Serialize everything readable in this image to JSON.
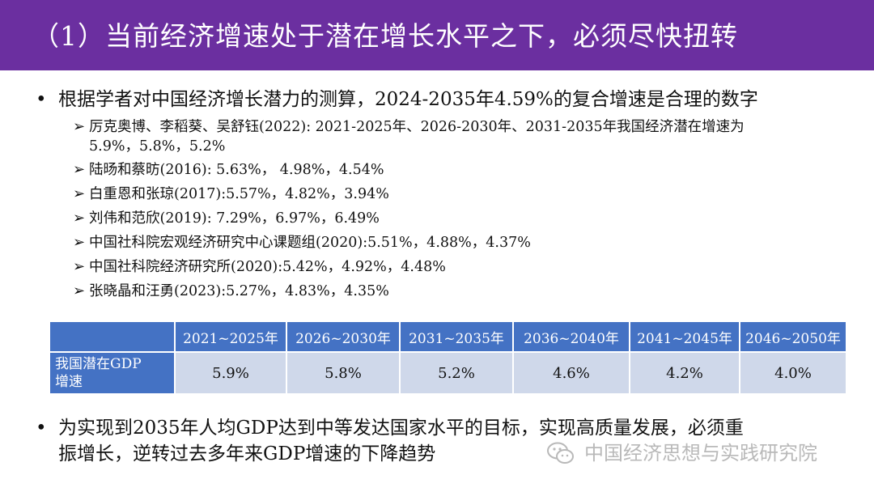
{
  "header": {
    "title": "（1）当前经济增速处于潜在增长水平之下，必须尽快扭转",
    "bg_color": "#6b2fa0"
  },
  "bullet1": {
    "text": "根据学者对中国经济增长潜力的测算，2024-2035年4.59%的复合增速是合理的数字",
    "items": [
      {
        "line1": "厉克奥博、李稻葵、吴舒钰(2022): 2021-2025年、2026-2030年、2031-2035年我国经济潜在增速为",
        "line2": "5.9%，5.8%，5.2%"
      },
      {
        "line1": "陆旸和蔡昉(2016): 5.63%， 4.98%，4.54%"
      },
      {
        "line1": "白重恩和张琼(2017):5.57%，4.82%，3.94%"
      },
      {
        "line1": "刘伟和范欣(2019): 7.29%，6.97%，6.49%"
      },
      {
        "line1": "中国社科院宏观经济研究中心课题组(2020):5.51%，4.88%，4.37%"
      },
      {
        "line1": "中国社科院经济研究所(2020):5.42%，4.92%，4.48%"
      },
      {
        "line1": "张晓晶和汪勇(2023):5.27%，4.83%，4.35%"
      }
    ]
  },
  "table": {
    "headers": [
      "2021~2025年",
      "2026~2030年",
      "2031~2035年",
      "2036~2040年",
      "2041~2045年",
      "2046~2050年"
    ],
    "row_label_line1": "我国潜在GDP",
    "row_label_line2": "增速",
    "values": [
      "5.9%",
      "5.8%",
      "5.2%",
      "4.6%",
      "4.2%",
      "4.0%"
    ],
    "header_color": "#4472c4",
    "cell_color": "#cfd8ea"
  },
  "bullet2": {
    "line1": "为实现到2035年人均GDP达到中等发达国家水平的目标，实现高质量发展，必须重",
    "line2": "振增长，逆转过去多年来GDP增速的下降趋势"
  },
  "watermark": {
    "text": "中国经济思想与实践研究院",
    "icon": "wechat-icon"
  },
  "bullet_symbol": "•",
  "arrow_symbol": "➢"
}
